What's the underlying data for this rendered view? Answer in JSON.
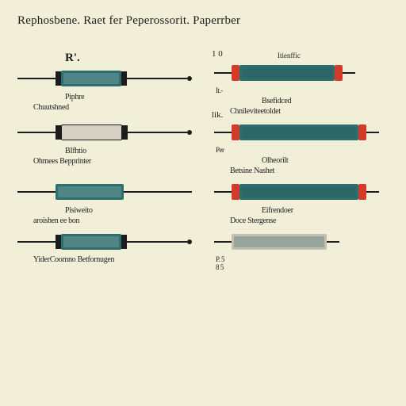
{
  "colors": {
    "page_bg": "#f2efd8",
    "text": "#1c1c1c",
    "lead": "#1c1c1c",
    "dot": "#1c1c1c",
    "term_block": "#1c1c1c",
    "body_teal": "#2f6e6e",
    "body_gray": "#bfbfb6",
    "body_metal": "#d4d1c4",
    "endcap_red": "#d23a2a",
    "inner_dark": "#234f4f",
    "inner_light": "#8fb3b3"
  },
  "title": "Rephosbene.  Raet fer  Peperossorit. Paperrber",
  "left": [
    {
      "top": "R'.",
      "caption": "Piphre",
      "sub": "Chuutshned",
      "style": "teal_blackterm",
      "lead_w": 48,
      "has_inner": true,
      "dot_end": true
    },
    {
      "top": "",
      "caption": "BIfhtio",
      "sub": "Ohmees Bepprinter",
      "style": "metal_blackterm",
      "lead_w": 48,
      "has_inner": false,
      "dot_end": true
    },
    {
      "top": "",
      "caption": "Pisiweito",
      "sub": "aroishen ee bon",
      "style": "teal_plain",
      "lead_w": 48,
      "has_inner": true,
      "dot_end": false
    },
    {
      "top": "",
      "caption": "",
      "sub": "YiderCoomno  Betfornugen",
      "style": "teal_blackterm",
      "lead_w": 48,
      "has_inner": true,
      "dot_end": true
    }
  ],
  "right": [
    {
      "num": "1  0",
      "top_small": "Itienffic",
      "caption": "Bsefidced",
      "sub": "Chnileviteetoldet",
      "style": "teal_redcap",
      "lead_w": 22,
      "mini": "It.-"
    },
    {
      "num": "",
      "top_small": "",
      "top_left": "lik.",
      "caption": "Olheorilt",
      "sub": "Betsine Nashet",
      "style": "teal_redcap_long",
      "lead_w": 22,
      "mini": "Per"
    },
    {
      "num": "",
      "top_small": "",
      "caption": "Eifrendoer",
      "sub": "Doce Stergense",
      "style": "teal_redcap_long",
      "lead_w": 22,
      "mini": ""
    },
    {
      "num": "",
      "top_small": "",
      "caption": "",
      "sub": "",
      "style": "teal_plain_half",
      "lead_w": 22,
      "mini": "P. 5",
      "mini2": "8 5"
    }
  ]
}
